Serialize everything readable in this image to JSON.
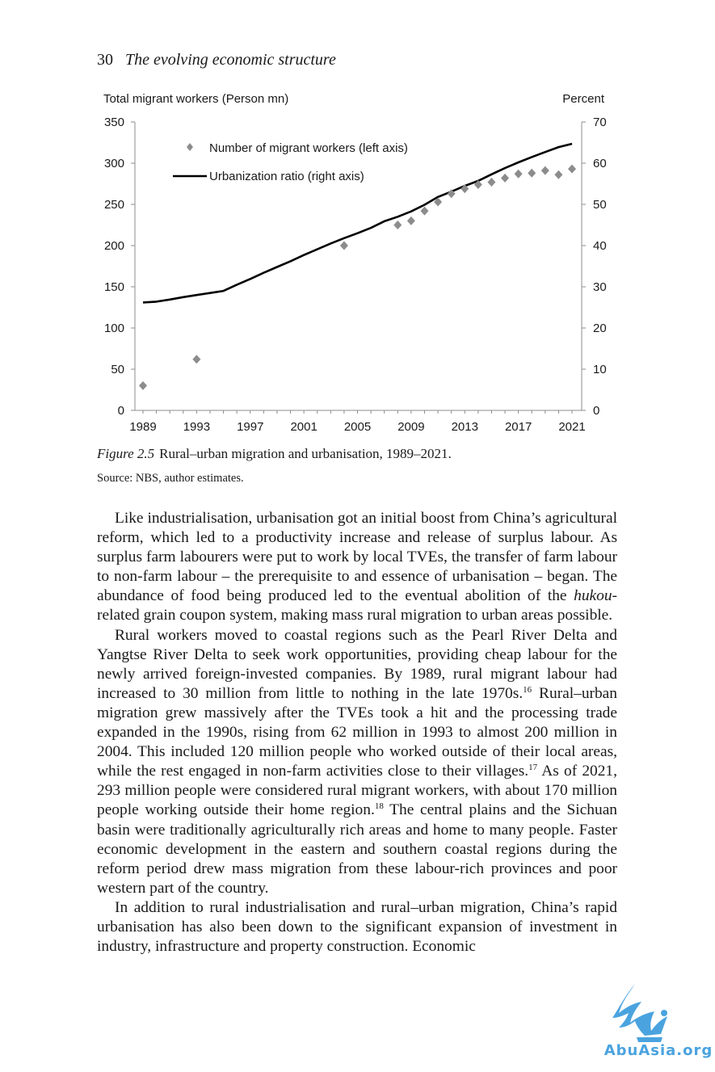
{
  "header": {
    "page_number": "30",
    "running_title": "The evolving economic structure"
  },
  "chart_data": {
    "type": "scatter+line",
    "left_axis_title": "Total migrant workers (Person mn)",
    "right_axis_title": "Percent",
    "left_ylim": [
      0,
      350
    ],
    "left_ticks": [
      "0",
      "50",
      "100",
      "150",
      "200",
      "250",
      "300",
      "350"
    ],
    "right_ylim": [
      0,
      70
    ],
    "right_ticks": [
      "0",
      "10",
      "20",
      "30",
      "40",
      "50",
      "60",
      "70"
    ],
    "xlim": [
      1989,
      2021
    ],
    "x_ticks": [
      "1989",
      "1993",
      "1997",
      "2001",
      "2005",
      "2009",
      "2013",
      "2017",
      "2021"
    ],
    "grid": false,
    "legend_position": "top-left",
    "legend": [
      {
        "label": "Number of migrant workers (left axis)",
        "marker": "diamond",
        "color": "#8c8c8c"
      },
      {
        "label": "Urbanization ratio (right axis)",
        "marker": "line",
        "color": "#000000"
      }
    ],
    "series": [
      {
        "name": "Number of migrant workers (left axis)",
        "axis": "left",
        "points": [
          [
            1989,
            30
          ],
          [
            1993,
            62
          ],
          [
            2004,
            200
          ],
          [
            2008,
            225
          ],
          [
            2009,
            230
          ],
          [
            2010,
            242
          ],
          [
            2011,
            253
          ],
          [
            2012,
            263
          ],
          [
            2013,
            269
          ],
          [
            2014,
            274
          ],
          [
            2015,
            277
          ],
          [
            2016,
            282
          ],
          [
            2017,
            287
          ],
          [
            2018,
            288
          ],
          [
            2019,
            291
          ],
          [
            2020,
            286
          ],
          [
            2021,
            293
          ]
        ]
      },
      {
        "name": "Urbanization ratio (right axis)",
        "axis": "right",
        "points": [
          [
            1989,
            26.2
          ],
          [
            1990,
            26.4
          ],
          [
            1991,
            26.9
          ],
          [
            1992,
            27.5
          ],
          [
            1993,
            28.0
          ],
          [
            1994,
            28.5
          ],
          [
            1995,
            29.0
          ],
          [
            1996,
            30.5
          ],
          [
            1997,
            31.9
          ],
          [
            1998,
            33.4
          ],
          [
            1999,
            34.8
          ],
          [
            2000,
            36.2
          ],
          [
            2001,
            37.7
          ],
          [
            2002,
            39.1
          ],
          [
            2003,
            40.5
          ],
          [
            2004,
            41.8
          ],
          [
            2005,
            43.0
          ],
          [
            2006,
            44.3
          ],
          [
            2007,
            45.9
          ],
          [
            2008,
            47.0
          ],
          [
            2009,
            48.3
          ],
          [
            2010,
            49.9
          ],
          [
            2011,
            51.8
          ],
          [
            2012,
            53.1
          ],
          [
            2013,
            54.5
          ],
          [
            2014,
            55.7
          ],
          [
            2015,
            57.3
          ],
          [
            2016,
            58.8
          ],
          [
            2017,
            60.2
          ],
          [
            2018,
            61.5
          ],
          [
            2019,
            62.7
          ],
          [
            2020,
            63.9
          ],
          [
            2021,
            64.7
          ]
        ]
      }
    ]
  },
  "caption": {
    "figure_label": "Figure 2.5",
    "text": "Rural–urban migration and urbanisation, 1989–2021."
  },
  "source": "Source: NBS, author estimates.",
  "paragraphs": [
    [
      {
        "t": "Like industrialisation, urbanisation got an initial boost from China’s agricultural reform, which led to a productivity increase and release of surplus labour. As surplus farm labourers were put to work by local TVEs, the transfer of farm labour to non-farm labour – the prerequisite to and essence of urbanisation – began. The abundance of food being produced led to the eventual abolition of the "
      },
      {
        "t": "hukou",
        "style": "em"
      },
      {
        "t": "-related grain coupon system, making mass rural migration to urban areas possible."
      }
    ],
    [
      {
        "t": "Rural workers moved to coastal regions such as the Pearl River Delta and Yangtse River Delta to seek work opportunities, providing cheap labour for the newly arrived foreign-invested companies. By 1989, rural migrant labour had increased to 30 million from little to nothing in the late 1970s."
      },
      {
        "t": "16",
        "style": "sup"
      },
      {
        "t": " Rural–urban migration grew massively after the TVEs took a hit and the processing trade expanded in the 1990s, rising from 62 million in 1993 to almost 200 million in 2004. This included 120 million people who worked outside of their local areas, while the rest engaged in non-farm activities close to their villages."
      },
      {
        "t": "17",
        "style": "sup"
      },
      {
        "t": " As of 2021, 293 million people were considered rural migrant workers, with about 170 million people working outside their home region."
      },
      {
        "t": "18",
        "style": "sup"
      },
      {
        "t": " The central plains and the Sichuan basin were traditionally agriculturally rich areas and home to many people. Faster economic development in the eastern and southern coastal regions during the reform period drew mass migration from these labour-rich provinces and poor western part of the country."
      }
    ],
    [
      {
        "t": "In addition to rural industrialisation and rural–urban migration, China’s rapid urbanisation has also been down to the significant expansion of investment in industry, infrastructure and property construction. Economic"
      }
    ]
  ],
  "watermark": {
    "text": "AbuAsia.org",
    "color": "#4aa3df",
    "icon": "bird-logo-icon"
  }
}
